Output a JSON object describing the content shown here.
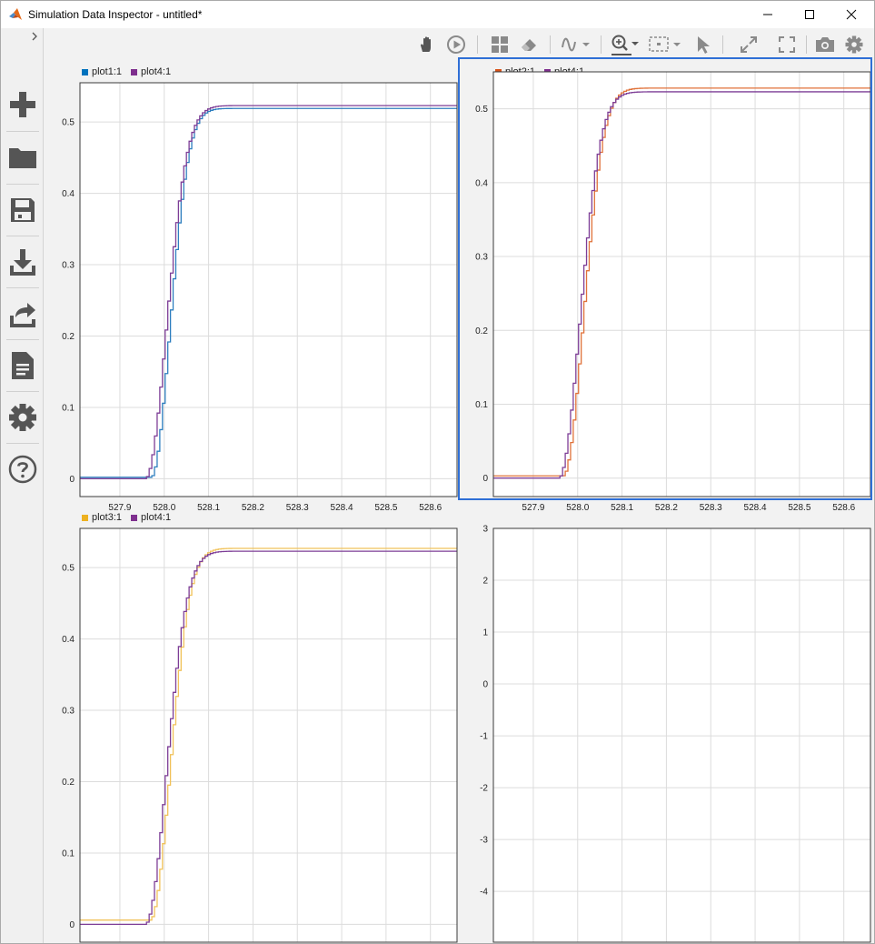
{
  "window": {
    "title": "Simulation Data Inspector - untitled*"
  },
  "icons": {
    "toolbar": [
      "pan-icon",
      "play-icon",
      "layout-icon",
      "eraser-icon",
      "signal-icon",
      "zoom-in-icon",
      "fit-to-view-icon",
      "cursor-icon",
      "expand-icon",
      "fullscreen-icon",
      "camera-icon",
      "gear-icon"
    ],
    "sidebar": [
      "plus-icon",
      "folder-icon",
      "save-icon",
      "download-icon",
      "share-icon",
      "document-icon",
      "gear-icon",
      "help-icon"
    ]
  },
  "colors": {
    "plot1": "#2e7fbf",
    "plot2": "#e0723a",
    "plot3": "#f1c25a",
    "plot4": "#7d3d96",
    "selection": "#2f6fd6"
  },
  "legends": {
    "p1": [
      {
        "label": "plot1:1",
        "color": "#0072bd"
      },
      {
        "label": "plot4:1",
        "color": "#7e2f8e"
      }
    ],
    "p2": [
      {
        "label": "plot2:1",
        "color": "#d95319"
      },
      {
        "label": "plot4:1",
        "color": "#7e2f8e"
      }
    ],
    "p3": [
      {
        "label": "plot3:1",
        "color": "#edb120"
      },
      {
        "label": "plot4:1",
        "color": "#7e2f8e"
      }
    ]
  },
  "chart_data": [
    {
      "type": "line",
      "xlim": [
        527.81,
        528.66
      ],
      "ylim": [
        -0.025,
        0.555
      ],
      "x_ticks": [
        "527.9",
        "528.0",
        "528.1",
        "528.2",
        "528.3",
        "528.4",
        "528.5",
        "528.6"
      ],
      "y_ticks": [
        "0",
        "0.1",
        "0.2",
        "0.3",
        "0.4",
        "0.5"
      ],
      "grid": true,
      "series": [
        {
          "name": "plot1:1",
          "color": "#2e7fbf",
          "baseline": 0.002,
          "final": 0.519,
          "t0": 527.96,
          "tau": 0.07,
          "delay": 0.008
        },
        {
          "name": "plot4:1",
          "color": "#7d3d96",
          "baseline": 0.0,
          "final": 0.523,
          "t0": 527.955,
          "tau": 0.078,
          "delay": 0.0
        }
      ]
    },
    {
      "type": "line",
      "xlim": [
        527.81,
        528.66
      ],
      "ylim": [
        -0.025,
        0.55
      ],
      "x_ticks": [
        "527.9",
        "528.0",
        "528.1",
        "528.2",
        "528.3",
        "528.4",
        "528.5",
        "528.6"
      ],
      "y_ticks": [
        "0",
        "0.1",
        "0.2",
        "0.3",
        "0.4",
        "0.5"
      ],
      "grid": true,
      "series": [
        {
          "name": "plot2:1",
          "color": "#e0723a",
          "baseline": 0.003,
          "final": 0.528,
          "t0": 527.96,
          "tau": 0.075,
          "delay": 0.005
        },
        {
          "name": "plot4:1",
          "color": "#7d3d96",
          "baseline": 0.0,
          "final": 0.523,
          "t0": 527.955,
          "tau": 0.078,
          "delay": 0.0
        }
      ]
    },
    {
      "type": "line",
      "xlim": [
        527.81,
        528.66
      ],
      "ylim": [
        -0.025,
        0.555
      ],
      "x_ticks": [
        "527.9",
        "528.0",
        "528.1",
        "528.2",
        "528.3",
        "528.4",
        "528.5",
        "528.6"
      ],
      "y_ticks": [
        "0",
        "0.1",
        "0.2",
        "0.3",
        "0.4",
        "0.5"
      ],
      "grid": true,
      "series": [
        {
          "name": "plot3:1",
          "color": "#f1c25a",
          "baseline": 0.006,
          "final": 0.527,
          "t0": 527.96,
          "tau": 0.074,
          "delay": 0.006
        },
        {
          "name": "plot4:1",
          "color": "#7d3d96",
          "baseline": 0.0,
          "final": 0.523,
          "t0": 527.955,
          "tau": 0.078,
          "delay": 0.0
        }
      ]
    },
    {
      "type": "line",
      "xlim": [
        527.81,
        528.66
      ],
      "ylim": [
        -4.98,
        3.0
      ],
      "x_ticks": [
        "527.9",
        "528.0",
        "528.1",
        "528.2",
        "528.3",
        "528.4",
        "528.5",
        "528.6"
      ],
      "y_ticks": [
        "-4",
        "-3",
        "-2",
        "-1",
        "0",
        "1",
        "2",
        "3"
      ],
      "grid": true,
      "series": []
    }
  ]
}
